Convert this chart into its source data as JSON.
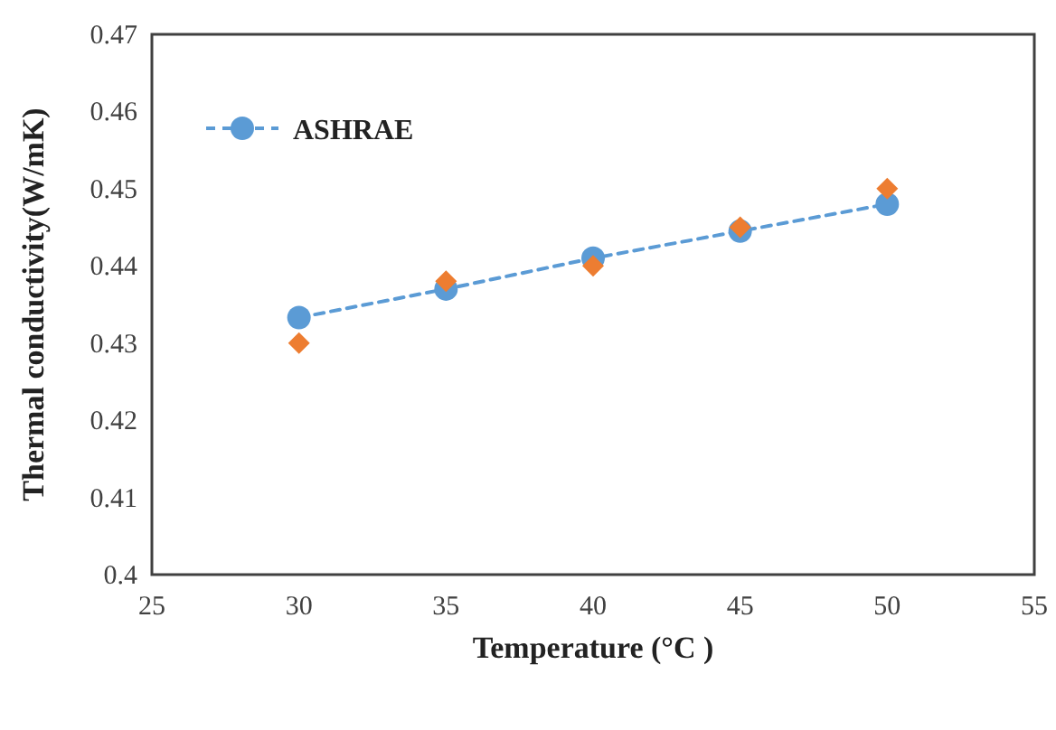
{
  "chart_data": {
    "type": "line",
    "xlabel": "Temperature (°C )",
    "ylabel": "Thermal conductivity(W/mK)",
    "x": [
      30,
      35,
      40,
      45,
      50
    ],
    "series": [
      {
        "name": "ASHRAE",
        "color": "#5b9bd5",
        "values": [
          0.4333,
          0.437,
          0.441,
          0.4445,
          0.448
        ],
        "marker": "circle",
        "line_style": "dashed"
      },
      {
        "type": "scatter",
        "color": "#ed7d31",
        "values": [
          0.43,
          0.438,
          0.44,
          0.445,
          0.45
        ],
        "marker": "diamond"
      }
    ],
    "xlim": [
      25,
      55
    ],
    "xticks": [
      25,
      30,
      35,
      40,
      45,
      50,
      55
    ],
    "ylim": [
      0.4,
      0.47
    ],
    "yticks": [
      {
        "value": 0.4,
        "label": "0.4"
      },
      0.41,
      0.42,
      0.43,
      0.44,
      0.45,
      0.46,
      0.47
    ],
    "grid": false,
    "legend": "top left"
  }
}
